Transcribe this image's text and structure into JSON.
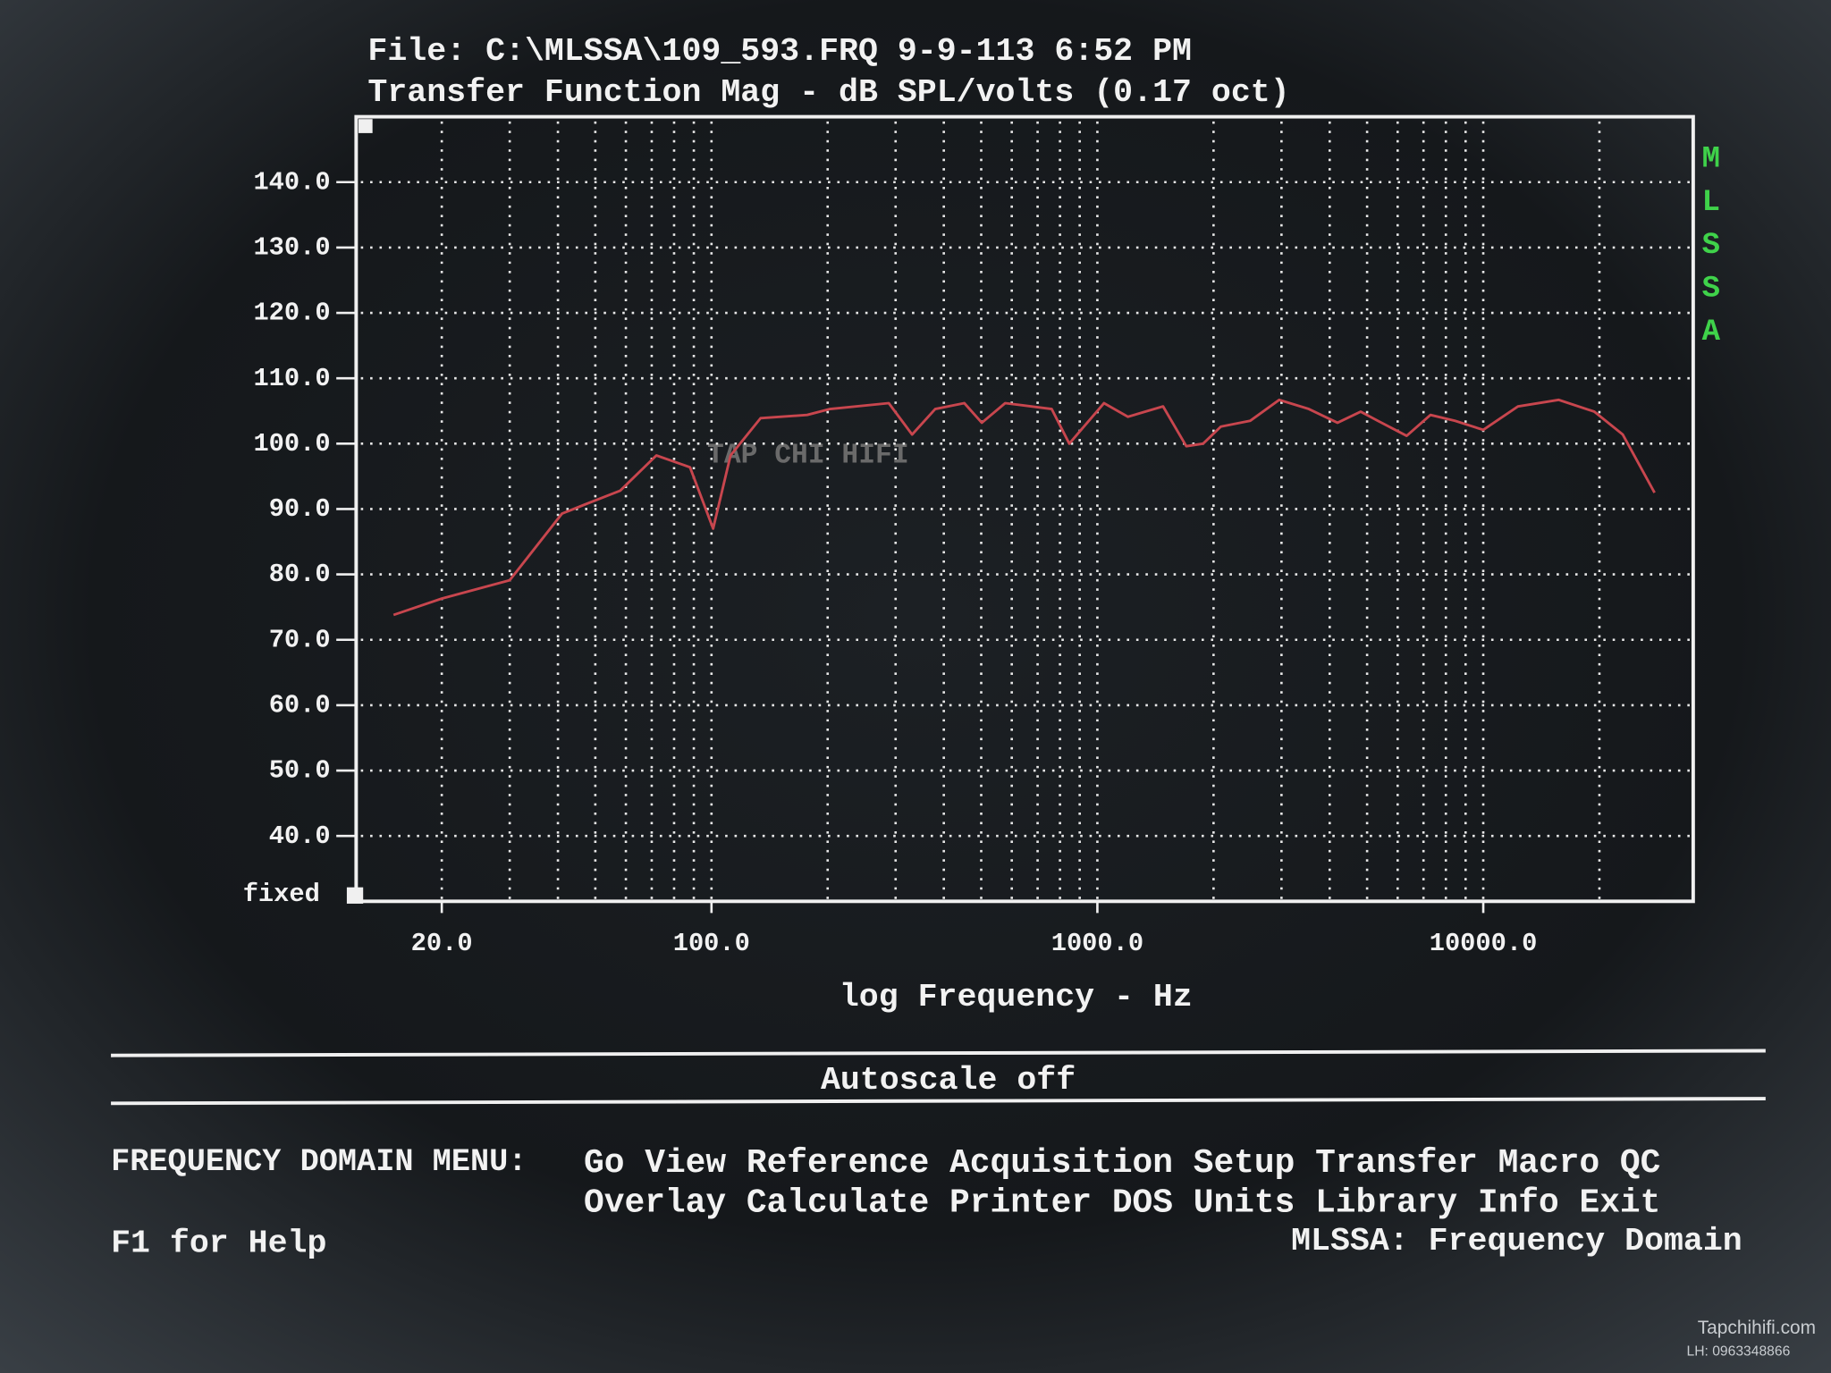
{
  "chart_data": {
    "type": "line",
    "title": "File: C:\\MLSSA\\109_593.FRQ 9-9-113 6:52 PM",
    "subtitle": "Transfer Function Mag - dB SPL/volts (0.17 oct)",
    "x_label": "log Frequency - Hz",
    "y_mode_label": "fixed",
    "side_label": "MLSSA",
    "watermark": "TAP CHI HIFI",
    "xscale": "log",
    "grid": true,
    "xlim": [
      12,
      35000
    ],
    "ylim": [
      30,
      150
    ],
    "xticks": [
      {
        "value": 20,
        "label": "20.0"
      },
      {
        "value": 100,
        "label": "100.0"
      },
      {
        "value": 1000,
        "label": "1000.0"
      },
      {
        "value": 10000,
        "label": "10000.0"
      }
    ],
    "xgrid": [
      20,
      30,
      40,
      50,
      60,
      70,
      80,
      90,
      100,
      200,
      300,
      400,
      500,
      600,
      700,
      800,
      900,
      1000,
      2000,
      3000,
      4000,
      5000,
      6000,
      7000,
      8000,
      9000,
      10000,
      20000
    ],
    "yticks": [
      {
        "value": 40,
        "label": "40.0"
      },
      {
        "value": 50,
        "label": "50.0"
      },
      {
        "value": 60,
        "label": "60.0"
      },
      {
        "value": 70,
        "label": "70.0"
      },
      {
        "value": 80,
        "label": "80.0"
      },
      {
        "value": 90,
        "label": "90.0"
      },
      {
        "value": 100,
        "label": "100.0"
      },
      {
        "value": 110,
        "label": "110.0"
      },
      {
        "value": 120,
        "label": "120.0"
      },
      {
        "value": 130,
        "label": "130.0"
      },
      {
        "value": 140,
        "label": "140.0"
      }
    ],
    "x": [
      15,
      20,
      30,
      41,
      47,
      58,
      72,
      88,
      101,
      112,
      134,
      177,
      203,
      288,
      331,
      380,
      452,
      502,
      577,
      761,
      846,
      1040,
      1200,
      1480,
      1700,
      1880,
      2090,
      2490,
      2960,
      3530,
      4190,
      4810,
      5330,
      6330,
      7300,
      8450,
      10000,
      12300,
      15700,
      19400,
      23000,
      27800
    ],
    "series": [
      {
        "name": "Transfer Function Mag",
        "color": "#c8464e",
        "values": [
          73.8,
          76.3,
          79.1,
          89.3,
          90.7,
          92.8,
          98.2,
          96.4,
          87.0,
          98.2,
          103.9,
          104.4,
          105.3,
          106.2,
          101.4,
          105.3,
          106.2,
          103.2,
          106.2,
          105.3,
          100.0,
          106.2,
          104.1,
          105.7,
          99.6,
          100.0,
          102.6,
          103.5,
          106.7,
          105.3,
          103.2,
          104.9,
          103.5,
          101.2,
          104.4,
          103.5,
          102.1,
          105.7,
          106.7,
          104.9,
          101.4,
          92.5
        ]
      }
    ]
  },
  "status_bar": "Autoscale off",
  "menu": {
    "label": "FREQUENCY DOMAIN MENU:",
    "rows": [
      [
        "Go",
        "View",
        "Reference",
        "Acquisition",
        "Setup",
        "Transfer",
        "Macro",
        "QC"
      ],
      [
        "Overlay",
        "Calculate",
        "Printer",
        "DOS",
        "Units",
        "Library",
        "Info",
        "Exit"
      ]
    ]
  },
  "help": "F1 for Help",
  "mode": "MLSSA: Frequency Domain",
  "credit": {
    "site": "Tapchihifi.com",
    "phone": "LH: 0963348866"
  }
}
